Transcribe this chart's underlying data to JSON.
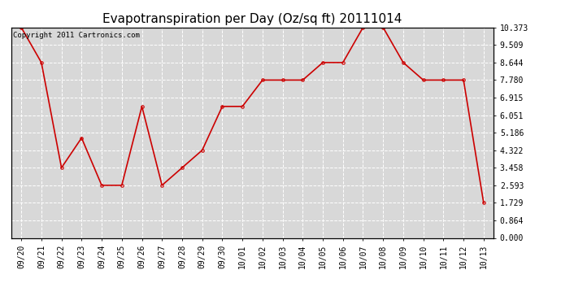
{
  "title": "Evapotranspiration per Day (Oz/sq ft) 20111014",
  "copyright_text": "Copyright 2011 Cartronics.com",
  "x_labels": [
    "09/20",
    "09/21",
    "09/22",
    "09/23",
    "09/24",
    "09/25",
    "09/26",
    "09/27",
    "09/28",
    "09/29",
    "09/30",
    "10/01",
    "10/02",
    "10/03",
    "10/04",
    "10/05",
    "10/06",
    "10/07",
    "10/08",
    "10/09",
    "10/10",
    "10/11",
    "10/12",
    "10/13"
  ],
  "y_values": [
    10.373,
    8.644,
    3.458,
    4.928,
    2.593,
    2.593,
    6.481,
    2.593,
    3.458,
    4.322,
    6.481,
    6.481,
    7.78,
    7.78,
    7.78,
    8.644,
    8.644,
    10.373,
    10.373,
    8.644,
    7.78,
    7.78,
    7.78,
    1.729
  ],
  "line_color": "#cc0000",
  "marker": "o",
  "marker_size": 2.5,
  "line_width": 1.2,
  "plot_bg_color": "#d8d8d8",
  "fig_bg_color": "#ffffff",
  "grid_color": "#ffffff",
  "grid_style": "--",
  "ylim": [
    0.0,
    10.373
  ],
  "yticks": [
    0.0,
    0.864,
    1.729,
    2.593,
    3.458,
    4.322,
    5.186,
    6.051,
    6.915,
    7.78,
    8.644,
    9.509,
    10.373
  ],
  "title_fontsize": 11,
  "tick_fontsize": 7,
  "copyright_fontsize": 6.5
}
